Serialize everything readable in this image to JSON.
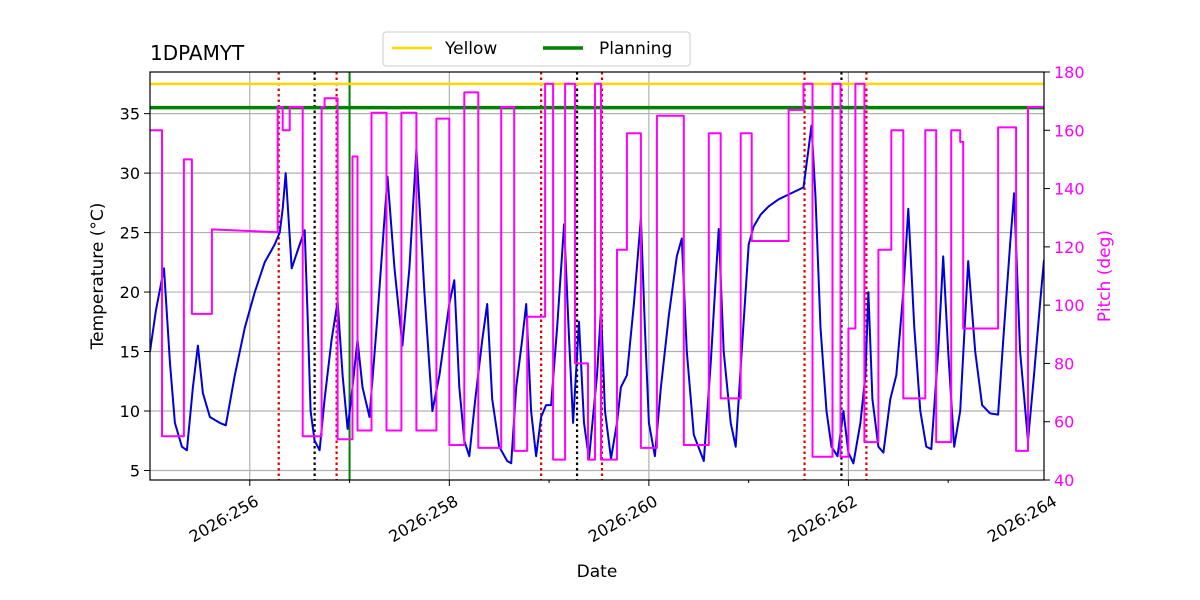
{
  "chart_data": {
    "type": "line",
    "title": "1DPAMYT",
    "xlabel": "Date",
    "ylabel": "Temperature ($^\\circ$C)",
    "ylabel_display": "Temperature (°C)",
    "y2label": "Pitch (deg)",
    "xlim": [
      255.0,
      263.96
    ],
    "ylim": [
      4.2,
      38.5
    ],
    "y2lim": [
      40,
      180
    ],
    "x_ticks": [
      256,
      258,
      260,
      262,
      264
    ],
    "x_tick_labels": [
      "2026:256",
      "2026:258",
      "2026:260",
      "2026:262",
      "2026:264"
    ],
    "y_ticks": [
      5,
      10,
      15,
      20,
      25,
      30,
      35
    ],
    "y2_ticks": [
      40,
      60,
      80,
      100,
      120,
      140,
      160,
      180
    ],
    "grid": true,
    "legend": {
      "placement": "top-center",
      "entries": [
        {
          "name": "Yellow",
          "color": "#ffd700"
        },
        {
          "name": "Planning",
          "color": "#008000"
        }
      ]
    },
    "limits": [
      {
        "name": "Yellow",
        "y": 37.5,
        "color": "#ffd700"
      },
      {
        "name": "Planning",
        "y": 35.5,
        "color": "#008000"
      }
    ],
    "vertical_markers": {
      "red_dotted": [
        256.29,
        256.87,
        258.92,
        259.53,
        261.56,
        262.18
      ],
      "black_dotted": [
        256.65,
        259.28,
        261.93
      ],
      "green_solid": [
        257.0
      ]
    },
    "series": [
      {
        "axis": "left",
        "color": "#0000dd",
        "points": [
          [
            255.0,
            15.0
          ],
          [
            255.06,
            18.5
          ],
          [
            255.14,
            22.0
          ],
          [
            255.2,
            14.0
          ],
          [
            255.25,
            9.0
          ],
          [
            255.32,
            7.0
          ],
          [
            255.37,
            6.7
          ],
          [
            255.43,
            12.0
          ],
          [
            255.48,
            15.5
          ],
          [
            255.53,
            11.5
          ],
          [
            255.6,
            9.5
          ],
          [
            255.7,
            9.0
          ],
          [
            255.76,
            8.8
          ],
          [
            255.85,
            13.0
          ],
          [
            255.95,
            17.0
          ],
          [
            256.05,
            20.0
          ],
          [
            256.15,
            22.5
          ],
          [
            256.25,
            24.0
          ],
          [
            256.3,
            25.0
          ],
          [
            256.33,
            27.0
          ],
          [
            256.36,
            30.0
          ],
          [
            256.39,
            26.0
          ],
          [
            256.42,
            22.0
          ],
          [
            256.5,
            24.0
          ],
          [
            256.55,
            25.2
          ],
          [
            256.58,
            18.0
          ],
          [
            256.61,
            10.0
          ],
          [
            256.65,
            7.5
          ],
          [
            256.7,
            6.7
          ],
          [
            256.75,
            11.0
          ],
          [
            256.82,
            16.0
          ],
          [
            256.88,
            19.2
          ],
          [
            256.93,
            13.0
          ],
          [
            256.98,
            8.5
          ],
          [
            257.03,
            12.0
          ],
          [
            257.08,
            16.0
          ],
          [
            257.13,
            12.0
          ],
          [
            257.2,
            9.5
          ],
          [
            257.28,
            18.0
          ],
          [
            257.38,
            29.7
          ],
          [
            257.45,
            22.0
          ],
          [
            257.53,
            15.5
          ],
          [
            257.6,
            22.0
          ],
          [
            257.67,
            32.0
          ],
          [
            257.75,
            20.0
          ],
          [
            257.83,
            10.0
          ],
          [
            257.9,
            13.0
          ],
          [
            258.0,
            19.0
          ],
          [
            258.05,
            21.0
          ],
          [
            258.1,
            12.0
          ],
          [
            258.15,
            7.5
          ],
          [
            258.2,
            6.2
          ],
          [
            258.26,
            11.0
          ],
          [
            258.33,
            16.0
          ],
          [
            258.38,
            19.0
          ],
          [
            258.43,
            11.0
          ],
          [
            258.5,
            7.0
          ],
          [
            258.58,
            5.8
          ],
          [
            258.62,
            5.6
          ],
          [
            258.67,
            12.0
          ],
          [
            258.73,
            16.0
          ],
          [
            258.77,
            19.0
          ],
          [
            258.82,
            10.0
          ],
          [
            258.87,
            6.2
          ],
          [
            258.92,
            9.5
          ],
          [
            258.97,
            10.5
          ],
          [
            259.02,
            10.5
          ],
          [
            259.08,
            17.0
          ],
          [
            259.15,
            25.7
          ],
          [
            259.2,
            16.0
          ],
          [
            259.24,
            9.0
          ],
          [
            259.3,
            17.5
          ],
          [
            259.35,
            9.0
          ],
          [
            259.4,
            6.0
          ],
          [
            259.48,
            13.0
          ],
          [
            259.52,
            18.5
          ],
          [
            259.56,
            10.0
          ],
          [
            259.62,
            6.0
          ],
          [
            259.68,
            9.0
          ],
          [
            259.72,
            12.0
          ],
          [
            259.78,
            13.0
          ],
          [
            259.85,
            19.0
          ],
          [
            259.92,
            26.2
          ],
          [
            259.96,
            17.0
          ],
          [
            260.0,
            9.0
          ],
          [
            260.06,
            6.2
          ],
          [
            260.12,
            12.0
          ],
          [
            260.2,
            18.0
          ],
          [
            260.28,
            23.0
          ],
          [
            260.33,
            24.5
          ],
          [
            260.38,
            15.0
          ],
          [
            260.45,
            8.0
          ],
          [
            260.55,
            5.8
          ],
          [
            260.62,
            14.0
          ],
          [
            260.7,
            25.3
          ],
          [
            260.75,
            15.0
          ],
          [
            260.82,
            9.0
          ],
          [
            260.87,
            7.0
          ],
          [
            260.93,
            15.0
          ],
          [
            261.0,
            24.0
          ],
          [
            261.05,
            25.5
          ],
          [
            261.12,
            26.5
          ],
          [
            261.2,
            27.2
          ],
          [
            261.3,
            27.8
          ],
          [
            261.4,
            28.2
          ],
          [
            261.55,
            28.8
          ],
          [
            261.6,
            32.0
          ],
          [
            261.63,
            34.0
          ],
          [
            261.67,
            28.0
          ],
          [
            261.72,
            17.0
          ],
          [
            261.78,
            10.0
          ],
          [
            261.83,
            7.0
          ],
          [
            261.89,
            6.2
          ],
          [
            261.95,
            10.0
          ],
          [
            262.0,
            6.5
          ],
          [
            262.05,
            5.6
          ],
          [
            262.12,
            9.0
          ],
          [
            262.17,
            13.0
          ],
          [
            262.2,
            20.0
          ],
          [
            262.24,
            11.0
          ],
          [
            262.3,
            7.0
          ],
          [
            262.35,
            6.5
          ],
          [
            262.42,
            11.0
          ],
          [
            262.48,
            13.0
          ],
          [
            262.55,
            20.0
          ],
          [
            262.6,
            27.0
          ],
          [
            262.66,
            17.0
          ],
          [
            262.72,
            10.0
          ],
          [
            262.78,
            7.0
          ],
          [
            262.83,
            6.8
          ],
          [
            262.9,
            15.0
          ],
          [
            262.95,
            23.0
          ],
          [
            263.0,
            15.0
          ],
          [
            263.06,
            7.0
          ],
          [
            263.12,
            10.0
          ],
          [
            263.2,
            22.6
          ],
          [
            263.27,
            15.0
          ],
          [
            263.34,
            10.5
          ],
          [
            263.42,
            9.8
          ],
          [
            263.5,
            9.7
          ],
          [
            263.56,
            17.0
          ],
          [
            263.62,
            24.0
          ],
          [
            263.66,
            28.3
          ],
          [
            263.72,
            15.0
          ],
          [
            263.8,
            7.5
          ],
          [
            263.86,
            13.0
          ],
          [
            263.92,
            19.0
          ],
          [
            263.96,
            22.7
          ]
        ]
      },
      {
        "axis": "right",
        "color": "#ff00ff",
        "points": [
          [
            255.0,
            160
          ],
          [
            255.12,
            160
          ],
          [
            255.12,
            55
          ],
          [
            255.34,
            55
          ],
          [
            255.34,
            150
          ],
          [
            255.42,
            150
          ],
          [
            255.42,
            97
          ],
          [
            255.62,
            97
          ],
          [
            255.62,
            126
          ],
          [
            256.28,
            125
          ],
          [
            256.28,
            168
          ],
          [
            256.33,
            168
          ],
          [
            256.33,
            160
          ],
          [
            256.4,
            160
          ],
          [
            256.4,
            168
          ],
          [
            256.53,
            168
          ],
          [
            256.53,
            55
          ],
          [
            256.72,
            55
          ],
          [
            256.72,
            168
          ],
          [
            256.75,
            168
          ],
          [
            256.75,
            171
          ],
          [
            256.88,
            171
          ],
          [
            256.88,
            54
          ],
          [
            257.03,
            54
          ],
          [
            257.03,
            151
          ],
          [
            257.08,
            151
          ],
          [
            257.08,
            57
          ],
          [
            257.22,
            57
          ],
          [
            257.22,
            166
          ],
          [
            257.37,
            166
          ],
          [
            257.37,
            57
          ],
          [
            257.52,
            57
          ],
          [
            257.52,
            166
          ],
          [
            257.67,
            166
          ],
          [
            257.67,
            57
          ],
          [
            257.87,
            57
          ],
          [
            257.87,
            164
          ],
          [
            258.0,
            164
          ],
          [
            258.0,
            52
          ],
          [
            258.15,
            52
          ],
          [
            258.15,
            173
          ],
          [
            258.29,
            173
          ],
          [
            258.29,
            51
          ],
          [
            258.52,
            51
          ],
          [
            258.52,
            168
          ],
          [
            258.65,
            168
          ],
          [
            258.65,
            50
          ],
          [
            258.78,
            50
          ],
          [
            258.78,
            96
          ],
          [
            258.96,
            96
          ],
          [
            258.96,
            176
          ],
          [
            259.04,
            176
          ],
          [
            259.04,
            47
          ],
          [
            259.16,
            47
          ],
          [
            259.16,
            176
          ],
          [
            259.26,
            176
          ],
          [
            259.26,
            80
          ],
          [
            259.39,
            80
          ],
          [
            259.39,
            47
          ],
          [
            259.46,
            47
          ],
          [
            259.46,
            176
          ],
          [
            259.52,
            176
          ],
          [
            259.52,
            47
          ],
          [
            259.68,
            47
          ],
          [
            259.68,
            119
          ],
          [
            259.78,
            119
          ],
          [
            259.78,
            159
          ],
          [
            259.92,
            159
          ],
          [
            259.92,
            51
          ],
          [
            260.08,
            51
          ],
          [
            260.08,
            165
          ],
          [
            260.35,
            165
          ],
          [
            260.35,
            52
          ],
          [
            260.6,
            52
          ],
          [
            260.6,
            159
          ],
          [
            260.72,
            159
          ],
          [
            260.72,
            68
          ],
          [
            260.92,
            68
          ],
          [
            260.92,
            159
          ],
          [
            261.03,
            159
          ],
          [
            261.03,
            122
          ],
          [
            261.4,
            122
          ],
          [
            261.4,
            167
          ],
          [
            261.55,
            167
          ],
          [
            261.55,
            176
          ],
          [
            261.64,
            176
          ],
          [
            261.64,
            48
          ],
          [
            261.84,
            48
          ],
          [
            261.84,
            176
          ],
          [
            261.92,
            176
          ],
          [
            261.92,
            48
          ],
          [
            262.0,
            48
          ],
          [
            262.0,
            92
          ],
          [
            262.07,
            92
          ],
          [
            262.07,
            176
          ],
          [
            262.16,
            176
          ],
          [
            262.16,
            53
          ],
          [
            262.3,
            53
          ],
          [
            262.3,
            119
          ],
          [
            262.43,
            119
          ],
          [
            262.43,
            160
          ],
          [
            262.55,
            160
          ],
          [
            262.55,
            68
          ],
          [
            262.77,
            68
          ],
          [
            262.77,
            160
          ],
          [
            262.88,
            160
          ],
          [
            262.88,
            53
          ],
          [
            263.03,
            53
          ],
          [
            263.03,
            160
          ],
          [
            263.12,
            160
          ],
          [
            263.12,
            156
          ],
          [
            263.15,
            156
          ],
          [
            263.15,
            92
          ],
          [
            263.5,
            92
          ],
          [
            263.5,
            161
          ],
          [
            263.68,
            161
          ],
          [
            263.68,
            50
          ],
          [
            263.8,
            50
          ],
          [
            263.8,
            168
          ],
          [
            263.96,
            168
          ]
        ]
      }
    ]
  }
}
